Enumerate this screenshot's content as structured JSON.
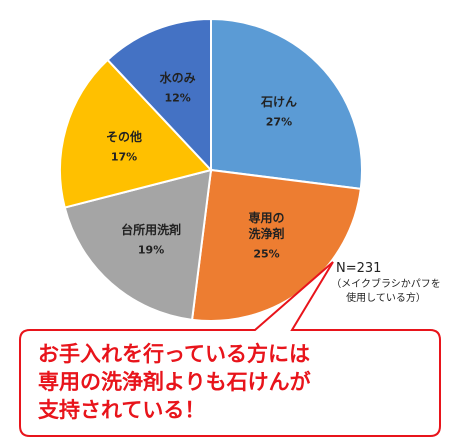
{
  "chart_data": {
    "type": "pie",
    "categories": [
      "石けん",
      "専用の\n洗浄剤",
      "台所用洗剤",
      "その他",
      "水のみ"
    ],
    "values": [
      27,
      25,
      19,
      17,
      12
    ],
    "value_labels": [
      "27%",
      "25%",
      "19%",
      "17%",
      "12%"
    ],
    "colors": [
      "#5b9bd5",
      "#ed7d31",
      "#a5a5a5",
      "#ffc000",
      "#4472c4"
    ],
    "annotations": [
      "N=231",
      "（メイクブラシかパフを\n使用している方）",
      "お手入れを行っている方には\n専用の洗浄剤よりも石けんが\n支持されている！"
    ]
  }
}
